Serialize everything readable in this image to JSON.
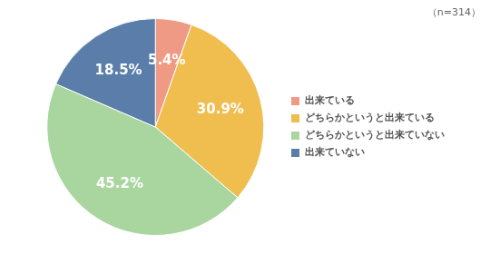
{
  "chart_data": {
    "type": "pie",
    "annotation": "（n=314）",
    "categories": [
      "出来ている",
      "どちらかというと出来ている",
      "どちらかというと出来ていない",
      "出来ていない"
    ],
    "values": [
      5.4,
      30.9,
      45.2,
      18.5
    ],
    "value_labels": [
      "5.4%",
      "30.9%",
      "45.2%",
      "18.5%"
    ],
    "colors": [
      "#ef9a84",
      "#f0bd4f",
      "#a8d69e",
      "#5a7ea9"
    ],
    "legend": "right",
    "data_labels": true
  }
}
